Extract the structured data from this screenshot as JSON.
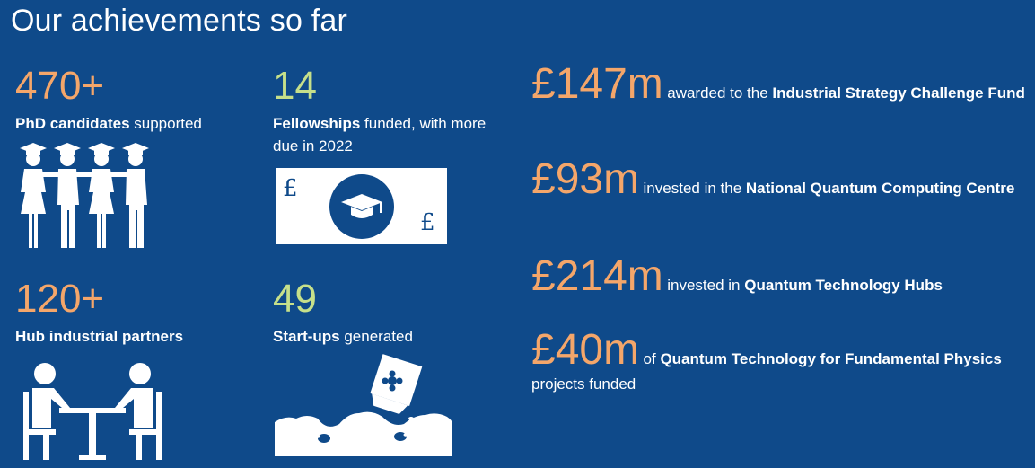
{
  "title": "Our achievements so far",
  "stats": [
    {
      "number": "470+",
      "bold": "PhD candidates",
      "rest": " supported"
    },
    {
      "number": "14",
      "bold": "Fellowships",
      "rest": " funded, with more due in 2022"
    },
    {
      "number": "120+",
      "bold": "Hub industrial partners",
      "rest": ""
    },
    {
      "number": "49",
      "bold": "Start-ups",
      "rest": " generated"
    }
  ],
  "funding": [
    {
      "amount": "£147m",
      "pre": "awarded to the ",
      "bold": "Industrial Strategy Challenge Fund",
      "post": ""
    },
    {
      "amount": "£93m",
      "pre": "invested in the ",
      "bold": "National Quantum Computing Centre",
      "post": ""
    },
    {
      "amount": "£214m",
      "pre": "invested in ",
      "bold": "Quantum Technology Hubs",
      "post": ""
    },
    {
      "amount": "£40m",
      "pre": "of ",
      "bold": "Quantum Technology for Fundamental Physics",
      "post": " projects funded"
    }
  ],
  "icons": {
    "graduates": "graduates-icon",
    "banknote": "banknote-icon",
    "pound_symbol": "£",
    "meeting": "meeting-icon",
    "seeds": "seed-packet-icon"
  },
  "colors": {
    "background": "#0f4a8a",
    "orange": "#f4a66a",
    "green": "#c6e08a"
  }
}
